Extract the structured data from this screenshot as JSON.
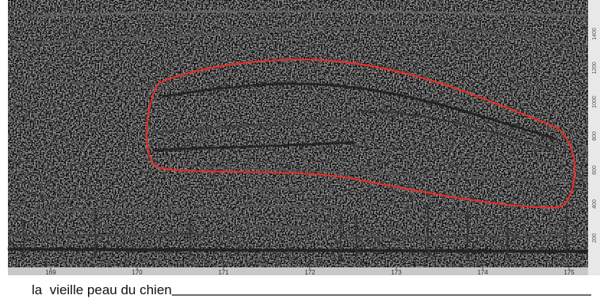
{
  "spectrogram": {
    "x_axis": {
      "ticks": [
        "169",
        "170",
        "171",
        "172",
        "173",
        "174",
        "175"
      ]
    },
    "y_axis": {
      "ticks": [
        "200",
        "400",
        "600",
        "800",
        "1000",
        "1200",
        "1400"
      ]
    }
  },
  "caption": "la  vieille peau du chien"
}
